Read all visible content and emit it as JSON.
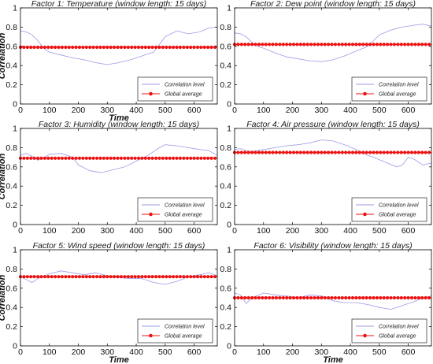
{
  "chart_data": [
    {
      "type": "line",
      "title": "Factor 1: Temperature (window length: 15 days)",
      "xlabel": "Time",
      "ylabel": "Correlation",
      "xlim": [
        0,
        680
      ],
      "ylim": [
        0,
        1
      ],
      "xticks": [
        0,
        100,
        200,
        300,
        400,
        500,
        600
      ],
      "yticks": [
        0,
        0.2,
        0.4,
        0.6,
        0.8,
        1
      ],
      "global_average": 0.59,
      "correlation_level": {
        "x": [
          0,
          20,
          40,
          60,
          80,
          100,
          140,
          180,
          220,
          260,
          300,
          340,
          380,
          420,
          460,
          480,
          500,
          540,
          580,
          620,
          650,
          680
        ],
        "y": [
          0.76,
          0.75,
          0.72,
          0.66,
          0.58,
          0.54,
          0.51,
          0.48,
          0.46,
          0.43,
          0.41,
          0.43,
          0.46,
          0.5,
          0.54,
          0.62,
          0.7,
          0.76,
          0.73,
          0.75,
          0.79,
          0.8
        ]
      },
      "legend": [
        "Correlation level",
        "Global average"
      ],
      "legend_position": "bottom-right"
    },
    {
      "type": "line",
      "title": "Factor 2: Dew point (window length: 15 days)",
      "xlabel": "",
      "ylabel": "",
      "xlim": [
        0,
        680
      ],
      "ylim": [
        0,
        1
      ],
      "xticks": [
        0,
        100,
        200,
        300,
        400,
        500,
        600
      ],
      "yticks": [
        0,
        0.2,
        0.4,
        0.6,
        0.8,
        1
      ],
      "global_average": 0.62,
      "correlation_level": {
        "x": [
          0,
          20,
          40,
          60,
          80,
          100,
          140,
          180,
          220,
          260,
          300,
          340,
          380,
          420,
          460,
          480,
          500,
          540,
          580,
          620,
          650,
          680
        ],
        "y": [
          0.74,
          0.73,
          0.7,
          0.64,
          0.6,
          0.58,
          0.53,
          0.49,
          0.47,
          0.45,
          0.44,
          0.46,
          0.5,
          0.55,
          0.6,
          0.66,
          0.72,
          0.77,
          0.8,
          0.82,
          0.83,
          0.81
        ]
      },
      "legend": [
        "Correlation level",
        "Global average"
      ],
      "legend_position": "bottom-right"
    },
    {
      "type": "line",
      "title": "Factor 3: Humidity (window length: 15 days)",
      "xlabel": "",
      "ylabel": "Correlation",
      "xlim": [
        0,
        680
      ],
      "ylim": [
        0,
        1
      ],
      "xticks": [
        0,
        100,
        200,
        300,
        400,
        500,
        600
      ],
      "yticks": [
        0,
        0.2,
        0.4,
        0.6,
        0.8,
        1
      ],
      "global_average": 0.69,
      "correlation_level": {
        "x": [
          0,
          20,
          40,
          60,
          80,
          100,
          140,
          180,
          200,
          240,
          280,
          320,
          360,
          400,
          440,
          480,
          500,
          540,
          580,
          620,
          650,
          680
        ],
        "y": [
          0.72,
          0.74,
          0.71,
          0.67,
          0.69,
          0.73,
          0.74,
          0.7,
          0.62,
          0.56,
          0.54,
          0.57,
          0.6,
          0.66,
          0.72,
          0.8,
          0.83,
          0.82,
          0.8,
          0.78,
          0.77,
          0.72
        ]
      },
      "legend": [
        "Correlation level",
        "Global average"
      ],
      "legend_position": "bottom-right"
    },
    {
      "type": "line",
      "title": "Factor 4: Air pressure (window length: 15 days)",
      "xlabel": "",
      "ylabel": "",
      "xlim": [
        0,
        680
      ],
      "ylim": [
        0,
        1
      ],
      "xticks": [
        0,
        100,
        200,
        300,
        400,
        500,
        600
      ],
      "yticks": [
        0,
        0.2,
        0.4,
        0.6,
        0.8,
        1
      ],
      "global_average": 0.75,
      "correlation_level": {
        "x": [
          0,
          20,
          40,
          60,
          100,
          140,
          180,
          220,
          260,
          300,
          340,
          380,
          420,
          460,
          480,
          520,
          560,
          580,
          600,
          620,
          650,
          680
        ],
        "y": [
          0.78,
          0.79,
          0.77,
          0.76,
          0.78,
          0.8,
          0.82,
          0.83,
          0.85,
          0.88,
          0.87,
          0.83,
          0.78,
          0.72,
          0.7,
          0.65,
          0.6,
          0.62,
          0.7,
          0.68,
          0.62,
          0.64
        ]
      },
      "legend": [
        "Correlation level",
        "Global average"
      ],
      "legend_position": "bottom-right"
    },
    {
      "type": "line",
      "title": "Factor 5: Wind speed (window length: 15 days)",
      "xlabel": "Time",
      "ylabel": "Correlation",
      "xlim": [
        0,
        680
      ],
      "ylim": [
        0,
        1
      ],
      "xticks": [
        0,
        100,
        200,
        300,
        400,
        500,
        600
      ],
      "yticks": [
        0,
        0.2,
        0.4,
        0.6,
        0.8,
        1
      ],
      "global_average": 0.72,
      "correlation_level": {
        "x": [
          0,
          20,
          40,
          60,
          100,
          140,
          180,
          220,
          260,
          300,
          340,
          380,
          420,
          460,
          500,
          540,
          580,
          620,
          650,
          680
        ],
        "y": [
          0.72,
          0.69,
          0.66,
          0.7,
          0.75,
          0.78,
          0.76,
          0.74,
          0.76,
          0.73,
          0.71,
          0.7,
          0.7,
          0.66,
          0.64,
          0.67,
          0.72,
          0.74,
          0.76,
          0.73
        ]
      },
      "legend": [
        "Correlation level",
        "Global average"
      ],
      "legend_position": "bottom-right"
    },
    {
      "type": "line",
      "title": "Factor 6: Visibility (window length: 15 days)",
      "xlabel": "Time",
      "ylabel": "",
      "xlim": [
        0,
        680
      ],
      "ylim": [
        0,
        1
      ],
      "xticks": [
        0,
        100,
        200,
        300,
        400,
        500,
        600
      ],
      "yticks": [
        0,
        0.2,
        0.4,
        0.6,
        0.8,
        1
      ],
      "global_average": 0.5,
      "correlation_level": {
        "x": [
          0,
          20,
          40,
          60,
          100,
          140,
          180,
          220,
          260,
          300,
          340,
          380,
          420,
          460,
          500,
          540,
          580,
          620,
          650,
          680
        ],
        "y": [
          0.55,
          0.53,
          0.44,
          0.5,
          0.55,
          0.53,
          0.52,
          0.5,
          0.53,
          0.52,
          0.47,
          0.45,
          0.45,
          0.43,
          0.4,
          0.38,
          0.42,
          0.46,
          0.5,
          0.52
        ]
      },
      "legend": [
        "Correlation level",
        "Global average"
      ],
      "legend_position": "bottom-right"
    }
  ],
  "colors": {
    "correlation_level": "#9b9bea",
    "global_average": "#ee1111",
    "axes": "#000000"
  }
}
